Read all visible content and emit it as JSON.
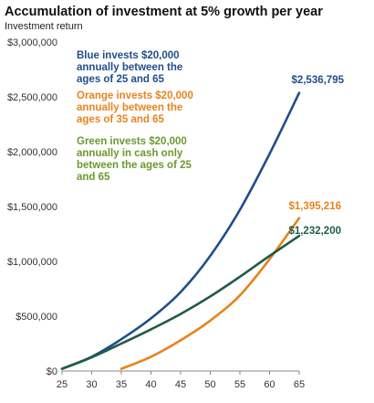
{
  "chart_data": {
    "type": "line",
    "title": "Accumulation  of investment at 5% growth per year",
    "subtitle": "Investment return",
    "xlim": [
      25,
      65
    ],
    "ylim": [
      0,
      3000000
    ],
    "x_ticks": [
      "25",
      "30",
      "35",
      "40",
      "45",
      "50",
      "55",
      "60",
      "65"
    ],
    "y_ticks": [
      "$0",
      "$500,000",
      "$1,000,000",
      "$1,500,000",
      "$2,000,000",
      "$2,500,000",
      "$3,000,000"
    ],
    "grid": false,
    "series": [
      {
        "color": "#1f4e8c",
        "x": [
          25,
          30,
          35,
          40,
          45,
          50,
          55,
          60,
          65
        ],
        "y": [
          20000,
          130000,
          290000,
          480000,
          720000,
          1050000,
          1470000,
          1980000,
          2536795
        ],
        "end_label": "$2,536,795"
      },
      {
        "color": "#e8821e",
        "x": [
          35,
          40,
          45,
          50,
          55,
          60,
          65
        ],
        "y": [
          20000,
          130000,
          280000,
          460000,
          690000,
          1020000,
          1395216
        ],
        "end_label": "$1,395,216"
      },
      {
        "color": "#1f5c46",
        "x": [
          25,
          30,
          35,
          40,
          45,
          50,
          55,
          60,
          65
        ],
        "y": [
          20000,
          125000,
          250000,
          380000,
          520000,
          680000,
          860000,
          1050000,
          1232200
        ],
        "end_label": "$1,232,200"
      }
    ],
    "annotations": [
      {
        "text": "Blue invests $20,000\nannually between the\nages of 25 and 65",
        "color": "#1f4e8c"
      },
      {
        "text": "Orange invests $20,000\nannually between the\nages of 35 and 65",
        "color": "#e8821e"
      },
      {
        "text": "Green invests $20,000\nannually in cash only\nbetween the ages of 25\nand 65",
        "color": "#6a9a2e"
      }
    ]
  }
}
